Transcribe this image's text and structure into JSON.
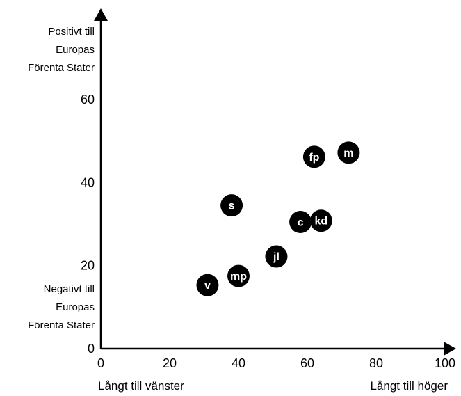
{
  "chart_data": {
    "type": "scatter",
    "x_ticks": [
      0,
      20,
      40,
      60,
      80,
      100
    ],
    "y_ticks": [
      0,
      20,
      40,
      60
    ],
    "xlim": [
      0,
      100
    ],
    "ylim": [
      0,
      60
    ],
    "grid": false,
    "y_top_label": [
      "Positivt till",
      "Europas",
      "Förenta Stater"
    ],
    "y_bottom_label": [
      "Negativt till",
      "Europas",
      "Förenta Stater"
    ],
    "x_left_label": "Långt till vänster",
    "x_right_label": "Långt till höger",
    "point_color": "#000000",
    "points": [
      {
        "label": "v",
        "x": 31,
        "y": 15.3
      },
      {
        "label": "mp",
        "x": 40,
        "y": 17.5
      },
      {
        "label": "jl",
        "x": 51,
        "y": 22.2
      },
      {
        "label": "s",
        "x": 38,
        "y": 34.5
      },
      {
        "label": "c",
        "x": 58,
        "y": 30.5
      },
      {
        "label": "kd",
        "x": 64,
        "y": 30.8
      },
      {
        "label": "fp",
        "x": 62,
        "y": 46.2
      },
      {
        "label": "m",
        "x": 72,
        "y": 47.2
      }
    ]
  }
}
